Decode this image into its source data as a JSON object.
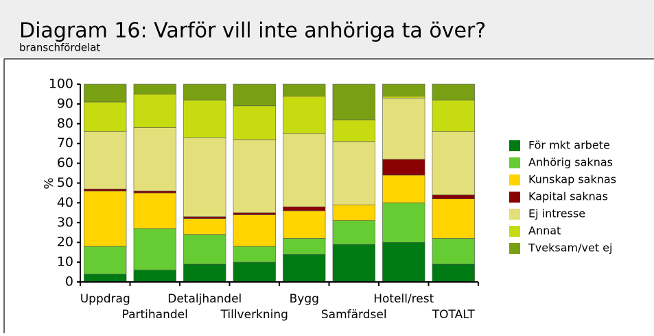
{
  "chart_data": {
    "type": "stacked_bar",
    "title": "Diagram 16: Varför vill inte anhöriga ta över?",
    "subtitle": "branschfördelat",
    "y_label": "%",
    "categories": [
      "Uppdrag",
      "Partihandel",
      "Detaljhandel",
      "Tillverkning",
      "Bygg",
      "Samfärdsel",
      "Hotell/rest",
      "TOTALT"
    ],
    "series": [
      {
        "name": "För mkt arbete",
        "color": "#007a12",
        "values": [
          4,
          6,
          9,
          10,
          14,
          19,
          20,
          9
        ]
      },
      {
        "name": "Anhörig saknas",
        "color": "#66cc33",
        "values": [
          14,
          21,
          15,
          8,
          8,
          12,
          20,
          13
        ]
      },
      {
        "name": "Kunskap saknas",
        "color": "#ffd400",
        "values": [
          28,
          18,
          8,
          16,
          14,
          8,
          14,
          20
        ]
      },
      {
        "name": "Kapital saknas",
        "color": "#8b0000",
        "values": [
          1,
          1,
          1,
          1,
          2,
          0,
          8,
          2
        ]
      },
      {
        "name": "Ej intresse",
        "color": "#e3df7a",
        "values": [
          29,
          32,
          40,
          37,
          37,
          32,
          31,
          32
        ]
      },
      {
        "name": "Annat",
        "color": "#c6dc10",
        "values": [
          15,
          17,
          19,
          17,
          19,
          11,
          1,
          16
        ]
      },
      {
        "name": "Tveksam/vet ej",
        "color": "#79a012",
        "values": [
          9,
          5,
          8,
          11,
          6,
          18,
          6,
          8
        ]
      }
    ],
    "ylim": [
      0,
      100
    ],
    "yticks": [
      0,
      10,
      20,
      30,
      40,
      50,
      60,
      70,
      80,
      90,
      100
    ],
    "legend": "right"
  }
}
